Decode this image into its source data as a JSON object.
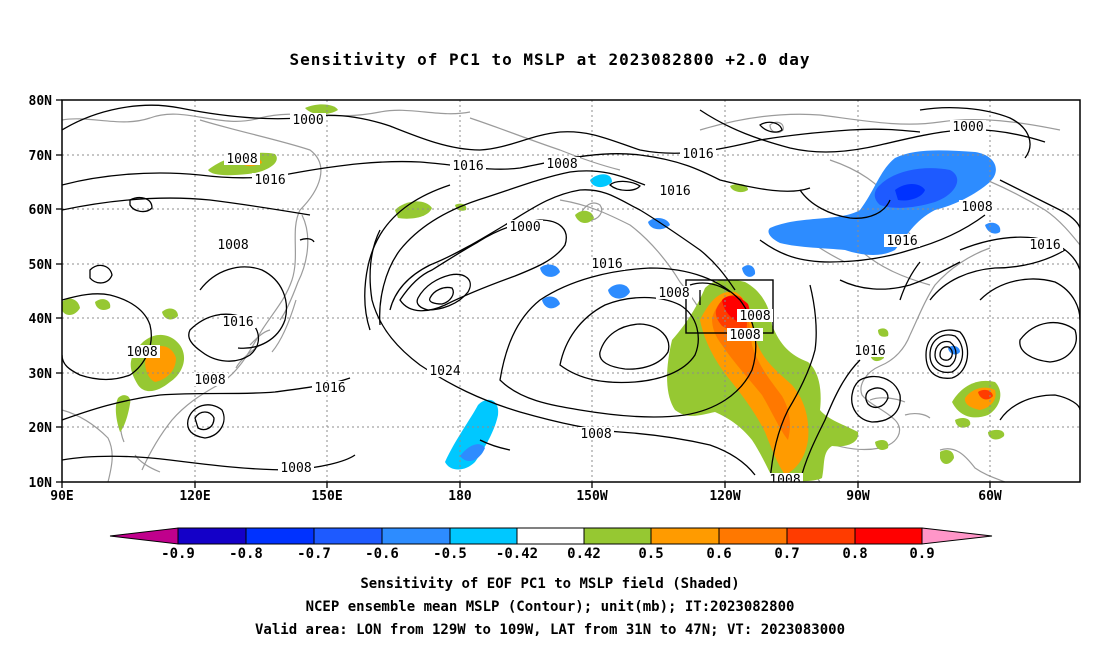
{
  "title": "Sensitivity of PC1 to MSLP at 2023082800 +2.0 day",
  "map": {
    "lat_ticks": [
      "80N",
      "70N",
      "60N",
      "50N",
      "40N",
      "30N",
      "20N",
      "10N"
    ],
    "lon_ticks": [
      "90E",
      "120E",
      "150E",
      "180",
      "150W",
      "120W",
      "90W",
      "60W"
    ],
    "extent": {
      "lon_range": "90E to 40W",
      "lat_range": "10N to 80N"
    },
    "grid": "dotted",
    "valid_area_box": "LON 129W-109W, LAT 31N-47N",
    "contour_labels": [
      "1000",
      "1008",
      "1016",
      "1008",
      "1016",
      "1008",
      "1008",
      "1016",
      "1008",
      "1016",
      "1000",
      "1008",
      "1016",
      "1024",
      "1008",
      "1008",
      "1016",
      "1016",
      "1016",
      "1000",
      "1008",
      "1016",
      "1016",
      "1008",
      "1008",
      "1008"
    ]
  },
  "colorbar": {
    "labels": [
      "-0.9",
      "-0.8",
      "-0.7",
      "-0.6",
      "-0.5",
      "-0.42",
      "0.42",
      "0.5",
      "0.6",
      "0.7",
      "0.8",
      "0.9"
    ],
    "colors": [
      "#c0008c",
      "#1400c8",
      "#0032ff",
      "#1e5aff",
      "#2d8cff",
      "#00c8ff",
      "#ffffff",
      "#96c832",
      "#ff9b00",
      "#ff7800",
      "#ff3c00",
      "#ff0000",
      "#ff96c8"
    ]
  },
  "captions": {
    "line1": "Sensitivity of EOF PC1 to MSLP field (Shaded)",
    "line2": "NCEP ensemble mean MSLP (Contour); unit(mb); IT:2023082800",
    "line3": "Valid area: LON from 129W to 109W, LAT from 31N to 47N; VT: 2023083000"
  }
}
